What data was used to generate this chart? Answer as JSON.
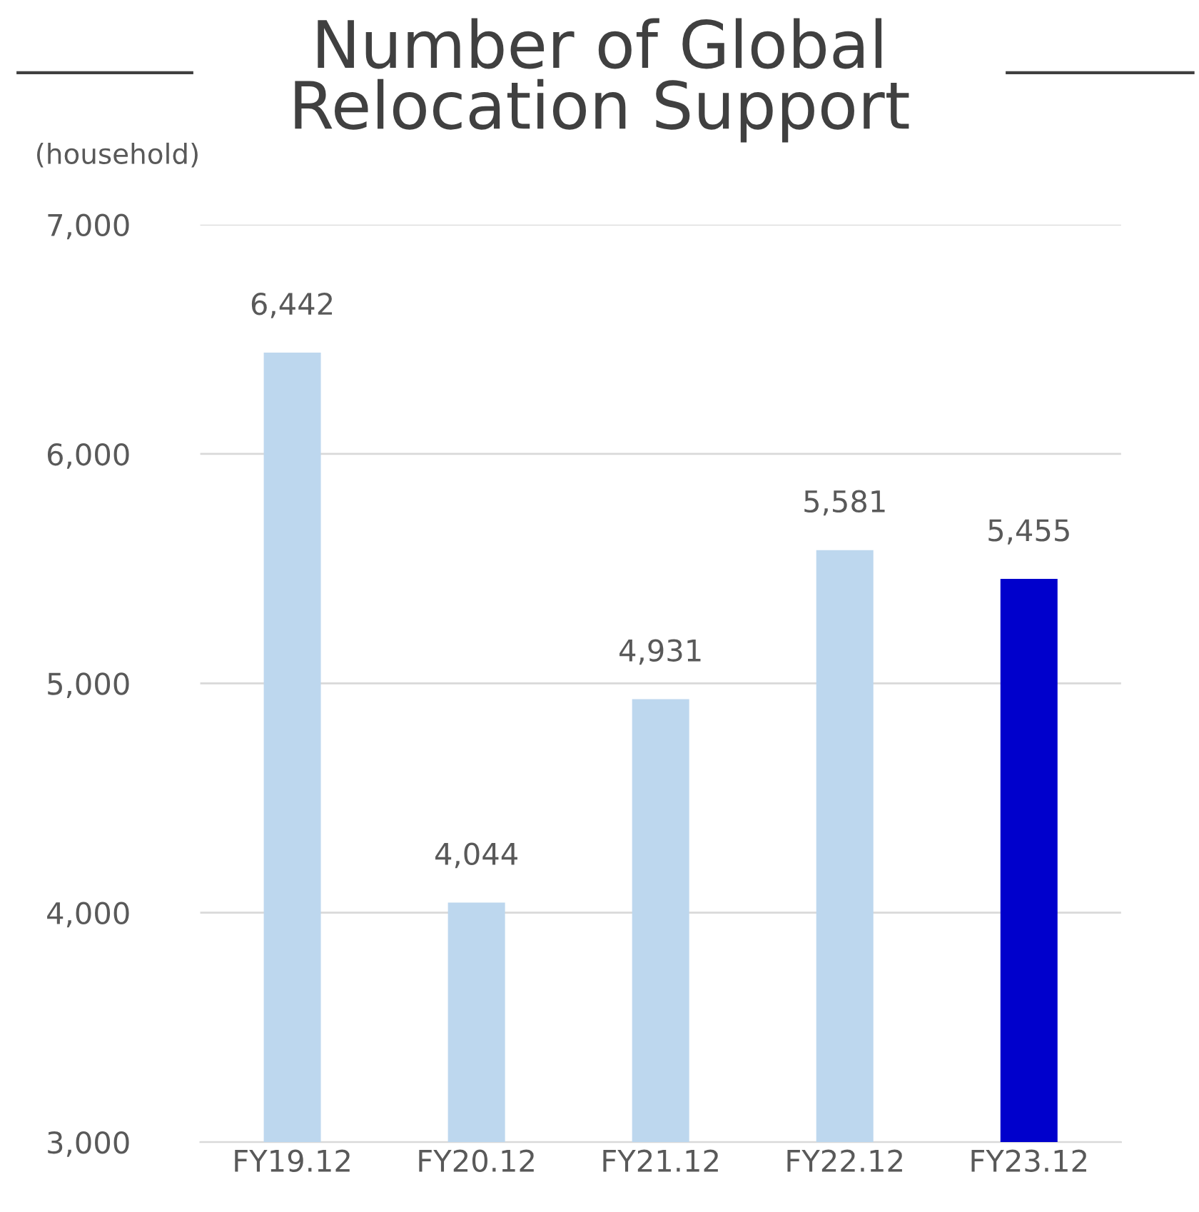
{
  "chart_data": {
    "type": "bar",
    "title": "Number of Global\nRelocation Support",
    "ylabel": "(household)",
    "categories": [
      "FY19.12",
      "FY20.12",
      "FY21.12",
      "FY22.12",
      "FY23.12"
    ],
    "values": [
      6442,
      4044,
      4931,
      5581,
      5455
    ],
    "colors": [
      "#bdd7ee",
      "#bdd7ee",
      "#bdd7ee",
      "#bdd7ee",
      "#0000cc"
    ],
    "value_labels": [
      "6,442",
      "4,044",
      "4,931",
      "5,581",
      "5,455"
    ],
    "ylim": [
      3000,
      7000
    ],
    "yticks": [
      {
        "value": 3000,
        "label": "3,000"
      },
      {
        "value": 4000,
        "label": "4,000"
      },
      {
        "value": 5000,
        "label": "5,000"
      },
      {
        "value": 6000,
        "label": "6,000"
      },
      {
        "value": 7000,
        "label": "7,000"
      }
    ],
    "grid": "y"
  }
}
